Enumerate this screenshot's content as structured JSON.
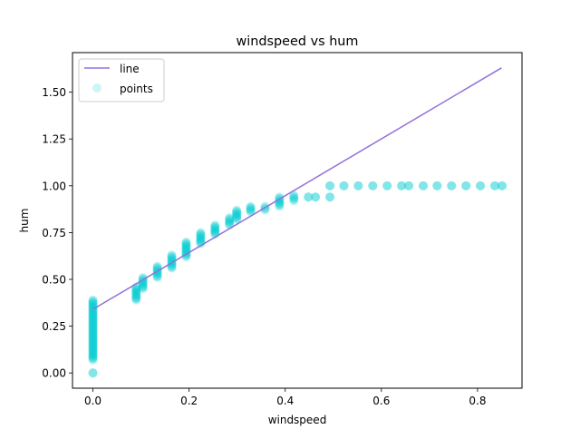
{
  "chart_data": {
    "type": "scatter",
    "title": "windspeed vs hum",
    "xlabel": "windspeed",
    "ylabel": "hum",
    "xlim": [
      -0.0425,
      0.8925
    ],
    "ylim": [
      -0.0815,
      1.7115
    ],
    "xticks": [
      0.0,
      0.2,
      0.4,
      0.6,
      0.8
    ],
    "xtick_labels": [
      "0.0",
      "0.2",
      "0.4",
      "0.6",
      "0.8"
    ],
    "yticks": [
      0.0,
      0.25,
      0.5,
      0.75,
      1.0,
      1.25,
      1.5
    ],
    "ytick_labels": [
      "0.00",
      "0.25",
      "0.50",
      "0.75",
      "1.00",
      "1.25",
      "1.50"
    ],
    "grid": false,
    "legend_position": "top-left",
    "series": [
      {
        "name": "line",
        "kind": "line",
        "color": "#9370DB",
        "x": [
          0.0,
          0.85
        ],
        "y": [
          0.34,
          1.63
        ]
      },
      {
        "name": "points",
        "kind": "scatter",
        "color": "#00CED1",
        "alpha": 0.2,
        "clusters": [
          {
            "x": 0.0,
            "y_min": 0.07,
            "y_max": 0.39
          },
          {
            "x": 0.0,
            "y_min": 0.0,
            "y_max": 0.0
          },
          {
            "x": 0.09,
            "y_min": 0.39,
            "y_max": 0.46
          },
          {
            "x": 0.104,
            "y_min": 0.45,
            "y_max": 0.51
          },
          {
            "x": 0.134,
            "y_min": 0.51,
            "y_max": 0.57
          },
          {
            "x": 0.164,
            "y_min": 0.56,
            "y_max": 0.63
          },
          {
            "x": 0.194,
            "y_min": 0.62,
            "y_max": 0.7
          },
          {
            "x": 0.224,
            "y_min": 0.69,
            "y_max": 0.75
          },
          {
            "x": 0.254,
            "y_min": 0.74,
            "y_max": 0.79
          },
          {
            "x": 0.284,
            "y_min": 0.79,
            "y_max": 0.83
          },
          {
            "x": 0.299,
            "y_min": 0.82,
            "y_max": 0.87
          },
          {
            "x": 0.328,
            "y_min": 0.86,
            "y_max": 0.89
          },
          {
            "x": 0.358,
            "y_min": 0.87,
            "y_max": 0.89
          },
          {
            "x": 0.388,
            "y_min": 0.89,
            "y_max": 0.94
          },
          {
            "x": 0.418,
            "y_min": 0.92,
            "y_max": 0.95
          },
          {
            "x": 0.448,
            "y_min": 0.94,
            "y_max": 0.94
          },
          {
            "x": 0.463,
            "y_min": 0.94,
            "y_max": 0.94
          },
          {
            "x": 0.493,
            "y_min": 0.94,
            "y_max": 0.94
          },
          {
            "x": 0.493,
            "y_min": 1.0,
            "y_max": 1.0
          },
          {
            "x": 0.522,
            "y_min": 1.0,
            "y_max": 1.0
          },
          {
            "x": 0.552,
            "y_min": 1.0,
            "y_max": 1.0
          },
          {
            "x": 0.582,
            "y_min": 1.0,
            "y_max": 1.0
          },
          {
            "x": 0.612,
            "y_min": 1.0,
            "y_max": 1.0
          },
          {
            "x": 0.642,
            "y_min": 1.0,
            "y_max": 1.0
          },
          {
            "x": 0.657,
            "y_min": 1.0,
            "y_max": 1.0
          },
          {
            "x": 0.687,
            "y_min": 1.0,
            "y_max": 1.0
          },
          {
            "x": 0.716,
            "y_min": 1.0,
            "y_max": 1.0
          },
          {
            "x": 0.746,
            "y_min": 1.0,
            "y_max": 1.0
          },
          {
            "x": 0.776,
            "y_min": 1.0,
            "y_max": 1.0
          },
          {
            "x": 0.806,
            "y_min": 1.0,
            "y_max": 1.0
          },
          {
            "x": 0.836,
            "y_min": 1.0,
            "y_max": 1.0
          },
          {
            "x": 0.851,
            "y_min": 1.0,
            "y_max": 1.0
          }
        ]
      }
    ]
  }
}
